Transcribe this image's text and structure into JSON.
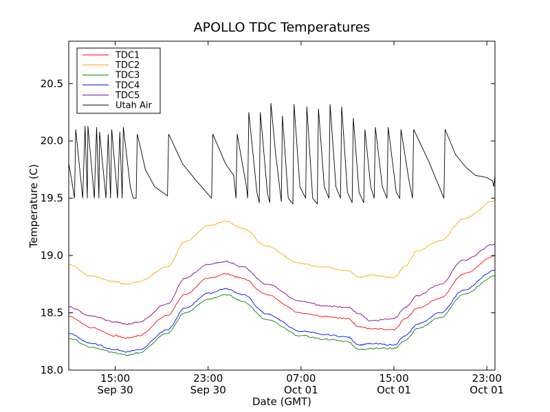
{
  "chart_data": {
    "type": "line",
    "title": "APOLLO TDC Temperatures",
    "xlabel": "Date (GMT)",
    "ylabel": "Temperature (C)",
    "x_unit": "hours since Sep 30 11:00 GMT",
    "xlim": [
      0,
      36.7
    ],
    "ylim": [
      18.0,
      20.87
    ],
    "y_ticks": [
      18.0,
      18.5,
      19.0,
      19.5,
      20.0,
      20.5
    ],
    "x_ticks": [
      {
        "x": 4,
        "time": "15:00",
        "date": "Sep 30"
      },
      {
        "x": 12,
        "time": "23:00",
        "date": "Sep 30"
      },
      {
        "x": 20,
        "time": "07:00",
        "date": "Oct 01"
      },
      {
        "x": 28,
        "time": "15:00",
        "date": "Oct 01"
      },
      {
        "x": 36,
        "time": "23:00",
        "date": "Oct 01"
      }
    ],
    "legend_position": "top-left",
    "series": [
      {
        "name": "TDC1",
        "color": "#ff0000",
        "x": [
          0,
          2,
          4,
          5,
          6,
          8.5,
          10,
          12,
          13.5,
          15,
          17,
          20,
          22,
          24,
          25,
          26,
          28,
          29,
          30,
          32,
          34,
          36.7
        ],
        "y": [
          18.47,
          18.37,
          18.3,
          18.28,
          18.3,
          18.48,
          18.66,
          18.8,
          18.84,
          18.8,
          18.66,
          18.5,
          18.47,
          18.45,
          18.38,
          18.36,
          18.35,
          18.45,
          18.54,
          18.63,
          18.84,
          19.0
        ]
      },
      {
        "name": "TDC2",
        "color": "#ffa500",
        "x": [
          0,
          2,
          4,
          5,
          6,
          8.5,
          10,
          12,
          13.5,
          15,
          17,
          20,
          22,
          24,
          25,
          26,
          28,
          29,
          30,
          32,
          34,
          36.7
        ],
        "y": [
          18.92,
          18.82,
          18.77,
          18.75,
          18.77,
          18.9,
          19.12,
          19.26,
          19.3,
          19.24,
          19.08,
          18.93,
          18.9,
          18.87,
          18.81,
          18.83,
          18.81,
          18.91,
          19.04,
          19.13,
          19.32,
          19.48
        ]
      },
      {
        "name": "TDC3",
        "color": "#008000",
        "x": [
          0,
          2,
          4,
          5,
          6,
          8.5,
          10,
          12,
          13.5,
          15,
          17,
          20,
          22,
          24,
          25,
          26,
          28,
          29,
          30,
          32,
          34,
          36.7
        ],
        "y": [
          18.28,
          18.2,
          18.15,
          18.13,
          18.15,
          18.32,
          18.5,
          18.62,
          18.66,
          18.6,
          18.44,
          18.3,
          18.27,
          18.25,
          18.18,
          18.19,
          18.19,
          18.26,
          18.36,
          18.46,
          18.66,
          18.82
        ]
      },
      {
        "name": "TDC4",
        "color": "#0000ff",
        "x": [
          0,
          2,
          4,
          5,
          6,
          8.5,
          10,
          12,
          13.5,
          15,
          17,
          20,
          22,
          24,
          25,
          26,
          28,
          29,
          30,
          32,
          34,
          36.7
        ],
        "y": [
          18.32,
          18.23,
          18.18,
          18.16,
          18.18,
          18.35,
          18.54,
          18.67,
          18.71,
          18.66,
          18.49,
          18.34,
          18.31,
          18.29,
          18.22,
          18.23,
          18.22,
          18.3,
          18.4,
          18.5,
          18.7,
          18.87
        ]
      },
      {
        "name": "TDC5",
        "color": "#800080",
        "x": [
          0,
          2,
          4,
          5,
          6,
          8.5,
          10,
          12,
          13.5,
          15,
          17,
          20,
          22,
          24,
          25,
          26,
          28,
          29,
          30,
          32,
          34,
          36.7
        ],
        "y": [
          18.55,
          18.47,
          18.42,
          18.4,
          18.42,
          18.58,
          18.8,
          18.92,
          18.95,
          18.9,
          18.75,
          18.6,
          18.56,
          18.55,
          18.49,
          18.43,
          18.45,
          18.55,
          18.65,
          18.75,
          18.96,
          19.1
        ]
      },
      {
        "name": "Utah Air",
        "color": "#000000",
        "x": [
          0,
          0.1,
          0.5,
          0.6,
          1.2,
          1.4,
          1.6,
          1.65,
          2.2,
          2.4,
          2.6,
          2.65,
          3.2,
          3.4,
          3.6,
          3.7,
          4.2,
          4.4,
          4.6,
          4.7,
          5.3,
          5.55,
          5.8,
          5.9,
          6.6,
          7.4,
          8.5,
          8.6,
          9.8,
          11,
          12.3,
          12.4,
          13.5,
          14.2,
          14.4,
          14.5,
          15.3,
          15.4,
          15.5,
          16.2,
          16.4,
          16.5,
          17.1,
          17.3,
          17.4,
          17.8,
          18.3,
          18.4,
          18.9,
          19.3,
          19.4,
          19.9,
          20.4,
          20.5,
          21,
          21.4,
          21.5,
          22,
          22.4,
          22.5,
          23,
          23.4,
          23.5,
          24,
          24.4,
          24.5,
          25,
          25.4,
          25.5,
          26,
          26.3,
          26.4,
          27,
          27.4,
          27.5,
          28.2,
          28.5,
          28.6,
          29.3,
          29.6,
          29.7,
          31,
          32.3,
          32.4,
          33.3,
          34.2,
          35,
          36,
          36.5,
          36.6,
          36.7
        ],
        "y": [
          19.8,
          19.75,
          19.5,
          20.1,
          19.5,
          20.13,
          19.5,
          20.13,
          19.5,
          20.12,
          19.5,
          20.08,
          19.5,
          20.06,
          19.5,
          20.1,
          19.5,
          20.08,
          19.5,
          20.12,
          19.6,
          19.5,
          19.5,
          20.06,
          19.75,
          19.6,
          19.52,
          20.06,
          19.8,
          19.65,
          19.5,
          20.06,
          19.8,
          19.7,
          19.5,
          20.06,
          19.6,
          19.5,
          20.25,
          19.55,
          19.46,
          20.25,
          19.55,
          19.46,
          20.33,
          19.9,
          19.47,
          20.22,
          19.5,
          19.45,
          20.32,
          19.6,
          19.5,
          20.3,
          19.5,
          19.45,
          20.28,
          19.6,
          19.5,
          20.32,
          19.6,
          19.5,
          20.3,
          19.55,
          19.46,
          20.2,
          19.55,
          19.46,
          20.1,
          19.6,
          19.5,
          20.12,
          19.6,
          19.5,
          20.12,
          19.55,
          19.5,
          20.1,
          19.65,
          19.5,
          20.1,
          19.82,
          19.5,
          20.1,
          19.88,
          19.77,
          19.7,
          19.68,
          19.65,
          19.6,
          19.7
        ]
      }
    ]
  }
}
